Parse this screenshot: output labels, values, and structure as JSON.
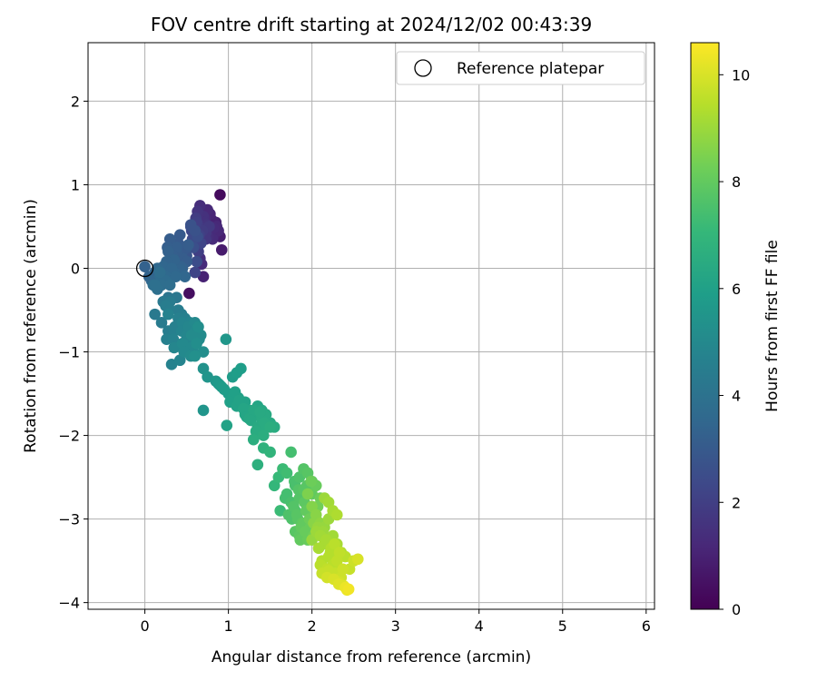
{
  "chart_data": {
    "type": "scatter",
    "title": "FOV centre drift starting at 2024/12/02 00:43:39",
    "xlabel": "Angular distance from reference (arcmin)",
    "ylabel": "Rotation from reference (arcmin)",
    "xlim": [
      -0.68,
      6.1
    ],
    "ylim": [
      -4.08,
      2.7
    ],
    "xticks": [
      0,
      1,
      2,
      3,
      4,
      5,
      6
    ],
    "yticks": [
      -4,
      -3,
      -2,
      -1,
      0,
      1,
      2
    ],
    "grid": true,
    "legend": {
      "position": "top-right",
      "entries": [
        "Reference platepar"
      ]
    },
    "reference_point": {
      "x": 0,
      "y": 0
    },
    "colorbar": {
      "label": "Hours from first FF file",
      "range": [
        0,
        10.6
      ],
      "ticks": [
        0,
        2,
        4,
        6,
        8,
        10
      ],
      "colormap": "viridis",
      "colormap_stops": [
        "#440154",
        "#482878",
        "#3e4989",
        "#31688e",
        "#26828e",
        "#1f9e89",
        "#35b779",
        "#6ece58",
        "#b5de2b",
        "#fde725"
      ]
    },
    "series": [
      {
        "x": [
          0.6,
          0.9,
          0.55,
          0.75,
          0.85,
          0.66,
          0.72,
          0.7,
          0.9,
          0.68,
          0.78,
          0.62,
          0.88,
          0.74,
          0.65,
          0.82,
          0.57,
          0.73,
          0.61,
          0.71,
          0.92,
          0.8,
          0.67,
          0.58,
          0.63,
          0.69,
          0.76,
          0.55,
          0.83,
          0.6,
          0.64,
          0.73,
          0.5,
          0.86,
          0.59,
          0.77,
          0.53,
          0.62,
          0.81,
          0.66,
          0.45,
          0.68,
          0.7,
          0.4,
          0.52,
          0.63,
          0.6,
          0.56
        ],
        "y": [
          0.45,
          0.88,
          0.5,
          0.7,
          0.55,
          0.75,
          0.6,
          0.62,
          0.38,
          0.48,
          0.65,
          0.55,
          0.45,
          0.52,
          0.4,
          0.48,
          0.35,
          0.42,
          0.6,
          0.55,
          0.22,
          0.58,
          0.3,
          0.25,
          0.68,
          0.45,
          0.38,
          0.52,
          0.4,
          0.3,
          0.2,
          0.35,
          0.15,
          0.5,
          0.42,
          0.5,
          -0.3,
          0.08,
          0.35,
          0.12,
          0.2,
          0.05,
          -0.1,
          0.25,
          0.28,
          0.38,
          -0.05,
          0.45
        ],
        "c": [
          2.7,
          0.3,
          2.5,
          1.2,
          1.0,
          1.4,
          1.3,
          1.5,
          0.9,
          1.8,
          1.1,
          2.0,
          1.2,
          1.6,
          2.1,
          1.3,
          2.4,
          1.7,
          1.9,
          1.5,
          0.8,
          1.0,
          2.2,
          2.6,
          1.6,
          1.9,
          1.4,
          2.7,
          1.1,
          2.3,
          2.0,
          1.7,
          2.8,
          1.2,
          2.2,
          1.8,
          0.4,
          2.5,
          1.3,
          1.4,
          3.0,
          1.3,
          1.0,
          3.0,
          3.1,
          2.6,
          2.2,
          2.3
        ]
      },
      {
        "x": [
          0.0,
          0.05,
          0.08,
          0.12,
          0.15,
          0.18,
          0.2,
          0.22,
          0.25,
          0.28,
          0.3,
          0.33,
          0.35,
          0.38,
          0.4,
          0.42,
          0.45,
          0.48,
          0.5,
          0.1,
          0.15,
          0.2,
          0.25,
          0.3,
          0.35,
          0.4,
          0.45,
          0.5,
          0.22,
          0.18,
          0.28,
          0.33,
          0.38,
          0.43,
          0.12,
          0.27,
          0.37,
          0.47,
          0.3,
          0.26,
          0.42,
          0.32
        ],
        "y": [
          0.02,
          -0.1,
          -0.15,
          -0.05,
          0.0,
          -0.08,
          -0.2,
          0.02,
          -0.1,
          0.2,
          0.35,
          0.05,
          0.1,
          0.25,
          -0.05,
          0.4,
          0.12,
          -0.1,
          0.25,
          -0.2,
          -0.25,
          -0.12,
          -0.15,
          0.18,
          -0.05,
          0.3,
          0.0,
          0.08,
          -0.4,
          -0.05,
          -0.35,
          0.15,
          0.2,
          0.02,
          -0.2,
          0.25,
          -0.1,
          0.1,
          -0.2,
          0.08,
          -0.02,
          0.0
        ],
        "c": [
          3.3,
          3.4,
          3.5,
          3.4,
          3.6,
          3.7,
          3.8,
          3.5,
          3.6,
          3.3,
          3.1,
          3.2,
          3.4,
          3.2,
          3.3,
          3.0,
          3.1,
          3.5,
          3.0,
          3.8,
          3.9,
          3.6,
          3.7,
          3.2,
          3.5,
          3.0,
          3.3,
          3.1,
          4.0,
          3.8,
          4.1,
          3.2,
          3.1,
          3.3,
          3.9,
          3.2,
          3.6,
          3.0,
          3.8,
          3.4,
          3.4,
          3.5
        ]
      },
      {
        "x": [
          0.12,
          0.2,
          0.25,
          0.3,
          0.35,
          0.28,
          0.4,
          0.45,
          0.5,
          0.55,
          0.6,
          0.65,
          0.7,
          0.35,
          0.45,
          0.5,
          0.55,
          0.6,
          0.32,
          0.42,
          0.48,
          0.58,
          0.62,
          0.52,
          0.67,
          0.38,
          0.3,
          0.22,
          0.44,
          0.55,
          0.64,
          0.47,
          0.34,
          0.56,
          0.4,
          0.26,
          0.6,
          0.36,
          0.5,
          0.44,
          0.28,
          0.54
        ],
        "y": [
          -0.55,
          -0.65,
          -0.45,
          -0.4,
          -0.75,
          -0.55,
          -0.5,
          -0.65,
          -0.8,
          -0.7,
          -0.65,
          -0.85,
          -1.0,
          -0.95,
          -0.9,
          -0.85,
          -1.05,
          -0.75,
          -1.15,
          -1.1,
          -0.6,
          -1.0,
          -0.9,
          -0.7,
          -0.8,
          -0.35,
          -0.5,
          -0.4,
          -0.75,
          -0.95,
          -0.7,
          -1.0,
          -0.85,
          -0.8,
          -0.6,
          -0.85,
          -1.05,
          -0.7,
          -0.9,
          -0.55,
          -0.75,
          -0.65
        ],
        "c": [
          4.3,
          4.4,
          4.5,
          4.4,
          4.6,
          4.7,
          4.5,
          4.8,
          4.9,
          4.8,
          5.0,
          5.1,
          5.2,
          4.9,
          5.0,
          4.9,
          5.1,
          5.0,
          4.7,
          4.8,
          4.6,
          5.0,
          5.2,
          4.9,
          5.1,
          4.2,
          4.5,
          4.3,
          4.8,
          5.0,
          5.2,
          5.0,
          4.7,
          5.1,
          4.6,
          4.6,
          5.3,
          4.6,
          4.9,
          4.5,
          4.5,
          4.8
        ]
      },
      {
        "x": [
          0.7,
          0.75,
          0.85,
          0.9,
          0.95,
          1.0,
          1.05,
          1.1,
          1.12,
          1.15,
          1.2,
          1.25,
          1.3,
          1.35,
          1.4,
          1.45,
          1.5,
          1.55,
          1.05,
          1.1,
          1.15,
          1.2,
          0.97,
          1.25,
          1.3,
          1.35,
          1.4,
          1.45,
          1.5,
          1.02,
          0.92,
          1.18,
          1.27,
          1.33,
          1.43,
          1.08,
          1.22,
          1.38,
          0.7,
          0.98,
          1.3,
          1.42,
          0.88,
          1.13
        ],
        "y": [
          -1.2,
          -1.3,
          -1.35,
          -1.4,
          -1.45,
          -1.5,
          -1.3,
          -1.25,
          -1.55,
          -1.2,
          -1.6,
          -1.7,
          -1.75,
          -1.65,
          -1.8,
          -1.9,
          -1.85,
          -1.9,
          -1.55,
          -1.65,
          -1.6,
          -1.75,
          -0.85,
          -1.8,
          -1.7,
          -1.9,
          -1.7,
          -1.75,
          -1.9,
          -1.6,
          -1.42,
          -1.68,
          -1.82,
          -1.95,
          -1.85,
          -1.48,
          -1.78,
          -1.72,
          -1.7,
          -1.88,
          -2.05,
          -2.0,
          -1.38,
          -1.58
        ],
        "c": [
          5.4,
          5.5,
          5.6,
          5.7,
          5.8,
          5.9,
          5.8,
          5.9,
          6.0,
          5.9,
          6.1,
          6.2,
          6.3,
          6.2,
          6.4,
          6.5,
          6.4,
          6.5,
          6.0,
          6.1,
          6.1,
          6.2,
          5.6,
          6.3,
          6.3,
          6.4,
          6.3,
          6.4,
          6.6,
          6.0,
          5.8,
          6.2,
          6.3,
          6.5,
          6.5,
          6.0,
          6.2,
          6.4,
          5.5,
          6.1,
          6.6,
          6.6,
          5.7,
          6.1
        ]
      },
      {
        "x": [
          1.35,
          1.42,
          1.5,
          1.55,
          1.6,
          1.65,
          1.7,
          1.75,
          1.8,
          1.85,
          1.9,
          1.95,
          2.0,
          1.7,
          1.75,
          1.8,
          1.85,
          1.9,
          1.95,
          2.0,
          2.05,
          2.1,
          1.72,
          1.78,
          1.83,
          1.88,
          1.93,
          1.98,
          2.03,
          1.8,
          1.85,
          1.9,
          1.95,
          1.68,
          1.82,
          1.87,
          1.92,
          1.97,
          2.02,
          1.62,
          1.76,
          1.91,
          2.07,
          1.84,
          1.99,
          1.86,
          1.79,
          1.94
        ],
        "y": [
          -2.35,
          -2.15,
          -2.2,
          -2.6,
          -2.5,
          -2.4,
          -2.45,
          -2.2,
          -2.6,
          -2.5,
          -2.4,
          -2.45,
          -2.55,
          -2.7,
          -2.8,
          -2.9,
          -2.75,
          -2.65,
          -2.85,
          -2.7,
          -2.6,
          -2.75,
          -2.95,
          -2.85,
          -3.0,
          -3.05,
          -2.9,
          -3.1,
          -2.95,
          -3.15,
          -3.2,
          -3.05,
          -3.25,
          -2.75,
          -2.95,
          -3.1,
          -3.15,
          -3.0,
          -3.2,
          -2.9,
          -3.0,
          -2.8,
          -2.85,
          -2.65,
          -2.55,
          -3.25,
          -2.55,
          -2.6
        ],
        "c": [
          6.7,
          6.8,
          6.9,
          7.0,
          7.1,
          7.2,
          7.3,
          7.4,
          7.5,
          7.6,
          7.7,
          7.8,
          7.9,
          7.4,
          7.5,
          7.6,
          7.7,
          7.8,
          7.9,
          8.0,
          8.1,
          8.2,
          7.6,
          7.7,
          7.8,
          7.9,
          8.0,
          8.1,
          8.2,
          7.8,
          7.9,
          8.0,
          8.1,
          7.4,
          7.8,
          8.0,
          8.1,
          8.2,
          8.3,
          7.2,
          7.6,
          7.9,
          8.3,
          7.7,
          8.2,
          8.0,
          7.5,
          7.8
        ]
      },
      {
        "x": [
          1.95,
          2.0,
          2.05,
          2.1,
          2.15,
          2.2,
          2.25,
          2.3,
          2.35,
          2.4,
          2.45,
          2.5,
          2.55,
          2.0,
          2.05,
          2.1,
          2.15,
          2.2,
          2.25,
          2.3,
          2.35,
          2.08,
          2.12,
          2.18,
          2.22,
          2.28,
          2.32,
          2.38,
          2.42,
          2.15,
          2.2,
          2.25,
          2.3,
          2.02,
          2.07,
          2.13,
          2.17,
          2.23,
          2.27,
          2.33,
          2.37,
          2.12,
          2.18,
          2.26,
          2.32,
          2.4,
          2.44,
          2.1,
          2.2
        ],
        "y": [
          -2.7,
          -2.85,
          -2.95,
          -3.05,
          -3.1,
          -3.0,
          -3.2,
          -3.3,
          -3.4,
          -3.45,
          -3.6,
          -3.5,
          -3.48,
          -3.25,
          -3.15,
          -3.2,
          -3.3,
          -3.45,
          -3.55,
          -3.5,
          -3.7,
          -3.35,
          -3.5,
          -3.6,
          -3.4,
          -3.65,
          -3.75,
          -3.8,
          -3.85,
          -2.75,
          -2.8,
          -2.9,
          -2.95,
          -3.05,
          -3.1,
          -3.15,
          -3.25,
          -3.35,
          -3.3,
          -3.4,
          -3.6,
          -3.65,
          -3.7,
          -3.72,
          -3.78,
          -3.82,
          -3.84,
          -3.55,
          -3.62
        ],
        "c": [
          8.5,
          8.6,
          8.7,
          8.8,
          8.9,
          9.0,
          9.1,
          9.2,
          9.3,
          9.5,
          9.7,
          9.8,
          10.0,
          8.9,
          9.0,
          9.1,
          9.2,
          9.4,
          9.5,
          9.6,
          9.8,
          9.2,
          9.4,
          9.6,
          9.4,
          9.7,
          9.9,
          10.1,
          10.3,
          9.0,
          9.1,
          9.2,
          9.3,
          8.7,
          8.9,
          9.0,
          9.2,
          9.4,
          9.5,
          9.6,
          9.8,
          9.7,
          9.9,
          10.0,
          10.1,
          10.3,
          10.4,
          9.5,
          9.7
        ]
      }
    ]
  }
}
